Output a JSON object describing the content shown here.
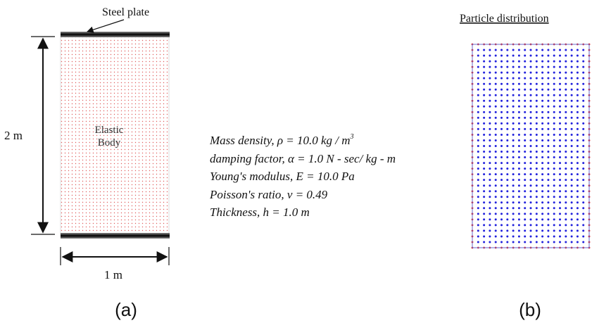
{
  "panel_a": {
    "caption": "(a)",
    "steel_plate_label": "Steel plate",
    "body_label_line1": "Elastic",
    "body_label_line2": "Body",
    "height_label": "2 m",
    "width_label": "1 m"
  },
  "properties": [
    {
      "text": "Mass density, ρ = 10.0 kg / m",
      "sup": "3"
    },
    {
      "text": "damping factor, α = 1.0 N - sec/ kg - m",
      "sup": ""
    },
    {
      "text": "Young's modulus, E = 10.0 Pa",
      "sup": ""
    },
    {
      "text": "Poisson's ratio, ν = 0.49",
      "sup": ""
    },
    {
      "text": "Thickness, h = 1.0 m",
      "sup": ""
    }
  ],
  "panel_b": {
    "caption": "(b)",
    "title": "Particle distribution"
  },
  "colors": {
    "interior_particles": "#2222dd",
    "boundary_particles": "#dd2222",
    "body_dots": "#e06060",
    "plate": "#111111"
  }
}
